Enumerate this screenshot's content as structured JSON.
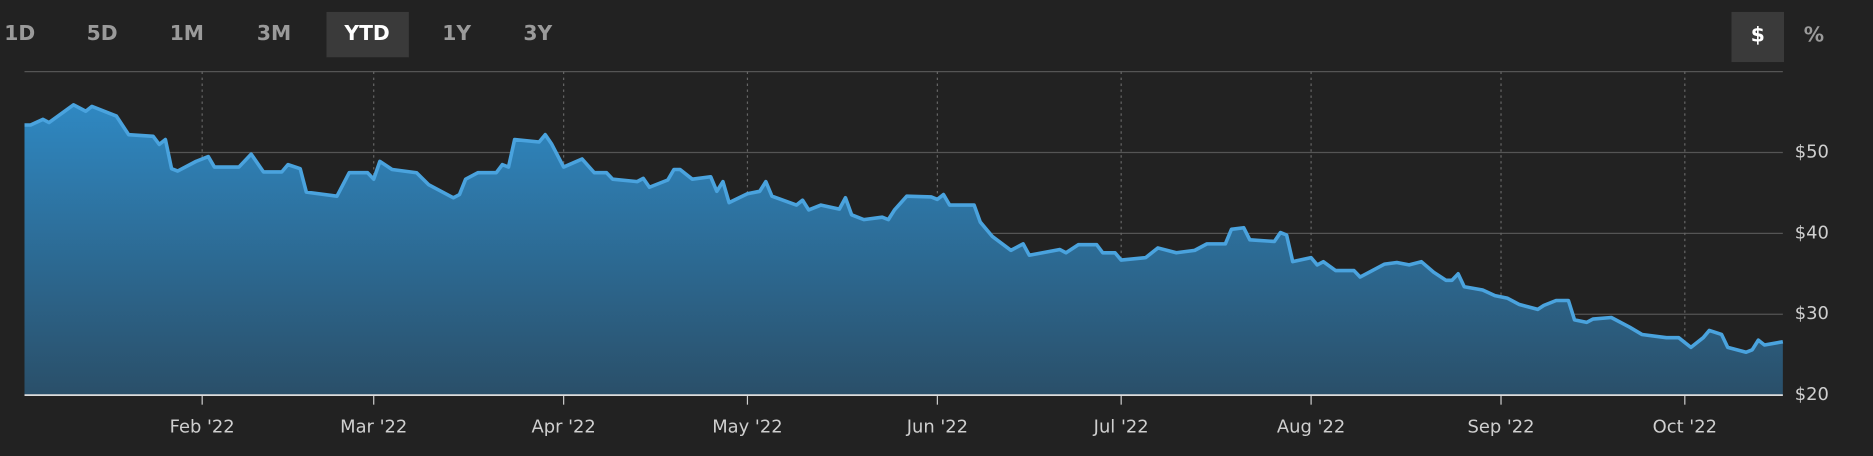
{
  "range_buttons": [
    "1D",
    "5D",
    "1M",
    "3M",
    "YTD",
    "1Y",
    "3Y"
  ],
  "active_range_index": 4,
  "unit_buttons": [
    "$",
    "%"
  ],
  "active_unit_index": 0,
  "chart_data": {
    "type": "area",
    "color": "#4aa3de",
    "grid": true,
    "x": [
      0,
      1,
      3,
      4,
      8,
      10,
      11,
      15,
      17,
      21,
      22,
      23,
      24,
      25,
      28,
      30,
      31,
      35,
      37,
      39,
      42,
      43,
      45,
      46,
      51,
      53,
      56,
      57,
      58,
      60,
      64,
      66,
      70,
      71,
      72,
      74,
      77,
      78,
      79,
      80,
      84,
      85,
      86,
      88,
      91,
      93,
      95,
      96,
      100,
      101,
      102,
      105,
      106,
      107,
      109,
      112,
      113,
      114,
      115,
      118,
      120,
      121,
      122,
      126,
      127,
      128,
      130,
      133,
      134,
      135,
      137,
      140,
      141,
      142,
      144,
      148,
      149,
      150,
      151,
      155,
      156,
      158,
      161,
      163,
      164,
      169,
      170,
      172,
      175,
      176,
      178,
      179,
      183,
      185,
      188,
      191,
      193,
      196,
      197,
      199,
      200,
      204,
      205,
      206,
      207,
      210,
      211,
      212,
      214,
      217,
      218,
      220,
      222,
      224,
      226,
      228,
      230,
      232,
      233,
      234,
      235,
      238,
      240,
      242,
      244,
      247,
      248,
      250,
      252,
      253,
      255,
      256,
      259,
      262,
      264,
      268,
      270,
      272,
      274,
      275,
      277,
      278,
      281,
      282,
      283,
      284,
      287
    ],
    "values": [
      53.4,
      53.4,
      54.1,
      53.7,
      55.9,
      55.1,
      55.7,
      54.5,
      52.2,
      52.0,
      51.0,
      51.6,
      48.0,
      47.7,
      48.9,
      49.5,
      48.2,
      48.2,
      49.8,
      47.6,
      47.6,
      48.5,
      48.0,
      45.1,
      44.6,
      47.5,
      47.5,
      46.7,
      48.9,
      47.9,
      47.5,
      46.0,
      44.4,
      44.8,
      46.7,
      47.5,
      47.5,
      48.5,
      48.2,
      51.6,
      51.3,
      52.2,
      51.1,
      48.2,
      49.2,
      47.5,
      47.5,
      46.7,
      46.4,
      46.8,
      45.7,
      46.6,
      47.9,
      47.9,
      46.7,
      47.0,
      45.2,
      46.4,
      43.8,
      44.9,
      45.2,
      46.4,
      44.6,
      43.5,
      44.1,
      42.9,
      43.5,
      43.0,
      44.4,
      42.3,
      41.7,
      42.0,
      41.7,
      42.9,
      44.6,
      44.5,
      44.2,
      44.8,
      43.5,
      43.5,
      41.4,
      39.6,
      37.9,
      38.7,
      37.3,
      38.0,
      37.6,
      38.6,
      38.6,
      37.6,
      37.6,
      36.7,
      37.0,
      38.2,
      37.6,
      37.9,
      38.7,
      38.7,
      40.5,
      40.7,
      39.2,
      39.0,
      40.1,
      39.8,
      36.5,
      37.0,
      36.1,
      36.5,
      35.4,
      35.4,
      34.6,
      35.4,
      36.2,
      36.4,
      36.1,
      36.5,
      35.2,
      34.2,
      34.2,
      35.0,
      33.4,
      33.0,
      32.3,
      32.0,
      31.2,
      30.6,
      31.1,
      31.7,
      31.7,
      29.3,
      29.0,
      29.4,
      29.6,
      28.4,
      27.5,
      27.1,
      27.1,
      25.9,
      27.1,
      28.0,
      27.5,
      25.9,
      25.3,
      25.6,
      26.8,
      26.2,
      26.6
    ],
    "xlim": [
      0,
      287
    ],
    "xticks": [
      {
        "value": 29,
        "label": "Feb '22"
      },
      {
        "value": 57,
        "label": "Mar '22"
      },
      {
        "value": 88,
        "label": "Apr '22"
      },
      {
        "value": 118,
        "label": "May '22"
      },
      {
        "value": 149,
        "label": "Jun '22"
      },
      {
        "value": 179,
        "label": "Jul '22"
      },
      {
        "value": 210,
        "label": "Aug '22"
      },
      {
        "value": 241,
        "label": "Sep '22"
      },
      {
        "value": 271,
        "label": "Oct '22"
      }
    ],
    "ylim": [
      20,
      60
    ],
    "yticks": [
      {
        "value": 20,
        "label": "$20"
      },
      {
        "value": 30,
        "label": "$30"
      },
      {
        "value": 40,
        "label": "$40"
      },
      {
        "value": 50,
        "label": "$50"
      }
    ]
  }
}
